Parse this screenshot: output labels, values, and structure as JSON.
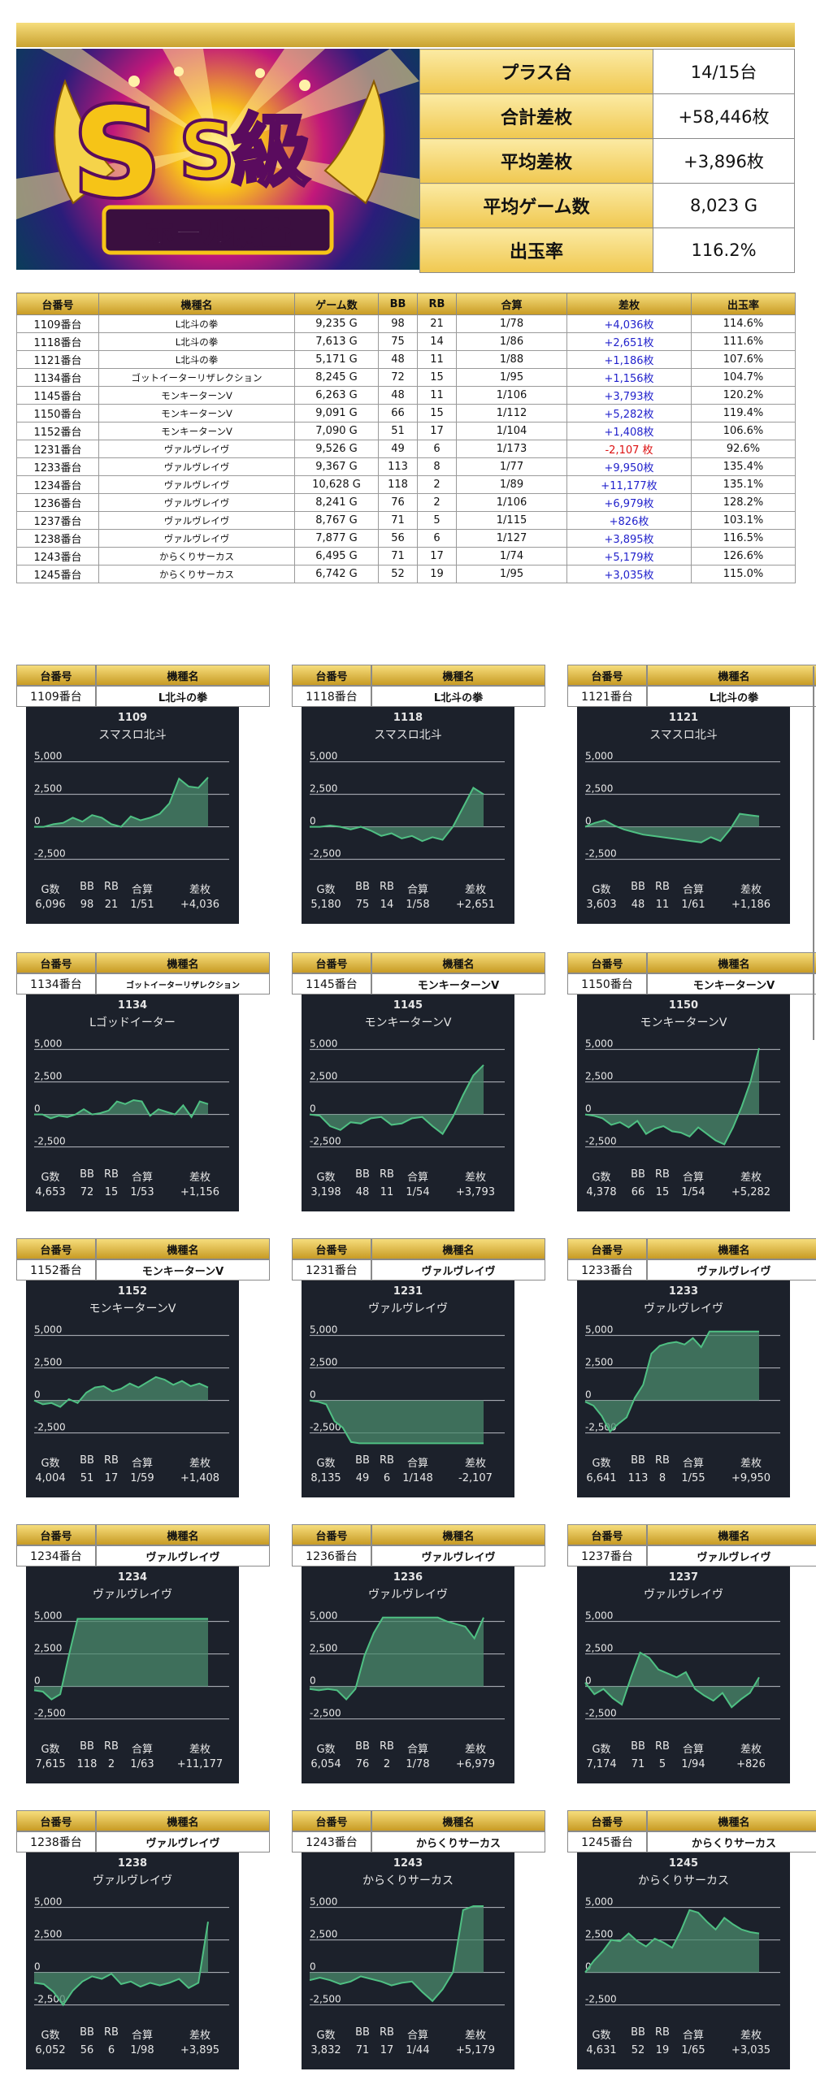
{
  "banner": {
    "logo_text": "S級",
    "sub_text": "ホール調査"
  },
  "summary": [
    {
      "label": "プラス台",
      "value": "14/15台"
    },
    {
      "label": "合計差枚",
      "value": "+58,446枚"
    },
    {
      "label": "平均差枚",
      "value": "+3,896枚"
    },
    {
      "label": "平均ゲーム数",
      "value": "8,023 G"
    },
    {
      "label": "出玉率",
      "value": "116.2%"
    }
  ],
  "table": {
    "headers": [
      "台番号",
      "機種名",
      "ゲーム数",
      "BB",
      "RB",
      "合算",
      "差枚",
      "出玉率"
    ],
    "rows": [
      [
        "1109番台",
        "L北斗の拳",
        "9,235 G",
        "98",
        "21",
        "1/78",
        "+4,036枚",
        "114.6%"
      ],
      [
        "1118番台",
        "L北斗の拳",
        "7,613 G",
        "75",
        "14",
        "1/86",
        "+2,651枚",
        "111.6%"
      ],
      [
        "1121番台",
        "L北斗の拳",
        "5,171 G",
        "48",
        "11",
        "1/88",
        "+1,186枚",
        "107.6%"
      ],
      [
        "1134番台",
        "ゴットイーターリザレクション",
        "8,245 G",
        "72",
        "15",
        "1/95",
        "+1,156枚",
        "104.7%"
      ],
      [
        "1145番台",
        "モンキーターンV",
        "6,263 G",
        "48",
        "11",
        "1/106",
        "+3,793枚",
        "120.2%"
      ],
      [
        "1150番台",
        "モンキーターンV",
        "9,091 G",
        "66",
        "15",
        "1/112",
        "+5,282枚",
        "119.4%"
      ],
      [
        "1152番台",
        "モンキーターンV",
        "7,090 G",
        "51",
        "17",
        "1/104",
        "+1,408枚",
        "106.6%"
      ],
      [
        "1231番台",
        "ヴァルヴレイヴ",
        "9,526 G",
        "49",
        "6",
        "1/173",
        "-2,107 枚",
        "92.6%"
      ],
      [
        "1233番台",
        "ヴァルヴレイヴ",
        "9,367 G",
        "113",
        "8",
        "1/77",
        "+9,950枚",
        "135.4%"
      ],
      [
        "1234番台",
        "ヴァルヴレイヴ",
        "10,628 G",
        "118",
        "2",
        "1/89",
        "+11,177枚",
        "135.1%"
      ],
      [
        "1236番台",
        "ヴァルヴレイヴ",
        "8,241 G",
        "76",
        "2",
        "1/106",
        "+6,979枚",
        "128.2%"
      ],
      [
        "1237番台",
        "ヴァルヴレイヴ",
        "8,767 G",
        "71",
        "5",
        "1/115",
        "+826枚",
        "103.1%"
      ],
      [
        "1238番台",
        "ヴァルヴレイヴ",
        "7,877 G",
        "56",
        "6",
        "1/127",
        "+3,895枚",
        "116.5%"
      ],
      [
        "1243番台",
        "からくりサーカス",
        "6,495 G",
        "71",
        "17",
        "1/74",
        "+5,179枚",
        "126.6%"
      ],
      [
        "1245番台",
        "からくりサーカス",
        "6,742 G",
        "52",
        "19",
        "1/95",
        "+3,035枚",
        "115.0%"
      ]
    ]
  },
  "card_header": {
    "unit": "台番号",
    "machine": "機種名"
  },
  "stat_labels": [
    "G数",
    "BB",
    "RB",
    "合算",
    "差枚"
  ],
  "y_ticks": [
    "5,000",
    "2,500",
    "0",
    "-2,500"
  ],
  "cards": [
    {
      "unit": "1109番台",
      "machine": "L北斗の拳",
      "panel_num": "1109",
      "panel_machine": "スマスロ北斗",
      "stats": [
        "6,096",
        "98",
        "21",
        "1/51",
        "+4,036"
      ],
      "series": [
        0,
        0,
        200,
        300,
        700,
        400,
        900,
        700,
        200,
        0,
        800,
        500,
        700,
        1000,
        1800,
        3700,
        3100,
        3000,
        3800
      ]
    },
    {
      "unit": "1118番台",
      "machine": "L北斗の拳",
      "panel_num": "1118",
      "panel_machine": "スマスロ北斗",
      "stats": [
        "5,180",
        "75",
        "14",
        "1/58",
        "+2,651"
      ],
      "series": [
        0,
        0,
        100,
        0,
        -200,
        0,
        -300,
        -700,
        -500,
        -900,
        -700,
        -1100,
        -800,
        -1000,
        0,
        1500,
        3000,
        2500
      ]
    },
    {
      "unit": "1121番台",
      "machine": "L北斗の拳",
      "panel_num": "1121",
      "panel_machine": "スマスロ北斗",
      "stats": [
        "3,603",
        "48",
        "11",
        "1/61",
        "+1,186"
      ],
      "series": [
        0,
        300,
        500,
        100,
        -200,
        -400,
        -600,
        -700,
        -800,
        -900,
        -1000,
        -1100,
        -1200,
        -800,
        -1100,
        -200,
        1000,
        900,
        800
      ]
    },
    {
      "unit": "1134番台",
      "machine": "ゴットイーターリザレクション",
      "panel_num": "1134",
      "panel_machine": "Lゴッドイーター",
      "stats": [
        "4,653",
        "72",
        "15",
        "1/53",
        "+1,156"
      ],
      "series": [
        0,
        0,
        -300,
        -100,
        -200,
        0,
        400,
        0,
        100,
        300,
        1000,
        800,
        1100,
        1000,
        -100,
        400,
        200,
        0,
        700,
        -200,
        1000,
        800
      ]
    },
    {
      "unit": "1145番台",
      "machine": "モンキーターンV",
      "panel_num": "1145",
      "panel_machine": "モンキーターンV",
      "stats": [
        "3,198",
        "48",
        "11",
        "1/54",
        "+3,793"
      ],
      "series": [
        0,
        -100,
        -900,
        -1200,
        -600,
        -700,
        -300,
        -200,
        -800,
        -700,
        -300,
        -200,
        -900,
        -1500,
        -200,
        1500,
        3000,
        3800
      ]
    },
    {
      "unit": "1150番台",
      "machine": "モンキーターンV",
      "panel_num": "1150",
      "panel_machine": "モンキーターンV",
      "stats": [
        "4,378",
        "66",
        "15",
        "1/54",
        "+5,282"
      ],
      "series": [
        0,
        -100,
        -300,
        -800,
        -600,
        -1000,
        -500,
        -1500,
        -1100,
        -900,
        -1300,
        -1400,
        -1700,
        -1000,
        -1500,
        -2000,
        -2300,
        -1000,
        600,
        2500,
        5100
      ]
    },
    {
      "unit": "1152番台",
      "machine": "モンキーターンV",
      "panel_num": "1152",
      "panel_machine": "モンキーターンV",
      "stats": [
        "4,004",
        "51",
        "17",
        "1/59",
        "+1,408"
      ],
      "series": [
        0,
        -300,
        -200,
        -500,
        100,
        -200,
        600,
        1000,
        1100,
        700,
        900,
        1300,
        1000,
        1400,
        1800,
        1600,
        1200,
        1500,
        1100,
        1300,
        1000
      ]
    },
    {
      "unit": "1231番台",
      "machine": "ヴァルヴレイヴ",
      "panel_num": "1231",
      "panel_machine": "ヴァルヴレイヴ",
      "stats": [
        "8,135",
        "49",
        "6",
        "1/148",
        "-2,107"
      ],
      "series": [
        0,
        -100,
        -300,
        -1600,
        -2100,
        -3200,
        -3300,
        -3300,
        -3300,
        -3300,
        -3300,
        -3300,
        -3300,
        -3300,
        -3300,
        -3300,
        -3300,
        -3300,
        -3300,
        -3300,
        -3300,
        -3300
      ]
    },
    {
      "unit": "1233番台",
      "machine": "ヴァルヴレイヴ",
      "panel_num": "1233",
      "panel_machine": "ヴァルヴレイヴ",
      "stats": [
        "6,641",
        "113",
        "8",
        "1/55",
        "+9,950"
      ],
      "series": [
        -100,
        -400,
        -1200,
        -2400,
        -1800,
        -1300,
        200,
        1200,
        3600,
        4200,
        4400,
        4500,
        4300,
        4800,
        4100,
        5300,
        5300,
        5300,
        5300,
        5300,
        5300,
        5300
      ]
    },
    {
      "unit": "1234番台",
      "machine": "ヴァルヴレイヴ",
      "panel_num": "1234",
      "panel_machine": "ヴァルヴレイヴ",
      "stats": [
        "7,615",
        "118",
        "2",
        "1/63",
        "+11,177"
      ],
      "series": [
        -300,
        -400,
        -1000,
        -600,
        2400,
        5200,
        5200,
        5200,
        5200,
        5200,
        5200,
        5200,
        5200,
        5200,
        5200,
        5200,
        5200,
        5200,
        5200,
        5200,
        5200
      ]
    },
    {
      "unit": "1236番台",
      "machine": "ヴァルヴレイヴ",
      "panel_num": "1236",
      "panel_machine": "ヴァルヴレイヴ",
      "stats": [
        "6,054",
        "76",
        "2",
        "1/78",
        "+6,979"
      ],
      "series": [
        -200,
        -300,
        -200,
        -300,
        -1000,
        -200,
        2400,
        4100,
        5300,
        5300,
        5300,
        5300,
        5300,
        5300,
        5300,
        5000,
        4800,
        4600,
        3700,
        5300
      ]
    },
    {
      "unit": "1237番台",
      "machine": "ヴァルヴレイヴ",
      "panel_num": "1237",
      "panel_machine": "ヴァルヴレイヴ",
      "stats": [
        "7,174",
        "71",
        "5",
        "1/94",
        "+826"
      ],
      "series": [
        300,
        -600,
        -200,
        -900,
        -1400,
        700,
        2600,
        2200,
        1300,
        1000,
        700,
        1100,
        -200,
        -700,
        -1100,
        -500,
        -1600,
        -1000,
        -500,
        700
      ]
    },
    {
      "unit": "1238番台",
      "machine": "ヴァルヴレイヴ",
      "panel_num": "1238",
      "panel_machine": "ヴァルヴレイヴ",
      "stats": [
        "6,052",
        "56",
        "6",
        "1/98",
        "+3,895"
      ],
      "series": [
        -800,
        -900,
        -1500,
        -2500,
        -1400,
        -700,
        -300,
        -500,
        -100,
        -900,
        -700,
        -1100,
        -800,
        -1000,
        -800,
        -500,
        -1200,
        -800,
        3900
      ]
    },
    {
      "unit": "1243番台",
      "machine": "からくりサーカス",
      "panel_num": "1243",
      "panel_machine": "からくりサーカス",
      "stats": [
        "3,832",
        "71",
        "17",
        "1/44",
        "+5,179"
      ],
      "series": [
        -600,
        -400,
        -600,
        -900,
        -700,
        -300,
        -500,
        -700,
        -1000,
        -800,
        -700,
        -1500,
        -2200,
        -1300,
        0,
        4800,
        5100,
        5100
      ]
    },
    {
      "unit": "1245番台",
      "machine": "からくりサーカス",
      "panel_num": "1245",
      "panel_machine": "からくりサーカス",
      "stats": [
        "4,631",
        "52",
        "19",
        "1/65",
        "+3,035"
      ],
      "series": [
        0,
        900,
        1600,
        2500,
        2400,
        3000,
        2400,
        2000,
        2600,
        2300,
        1900,
        3200,
        4800,
        4600,
        3900,
        3300,
        4200,
        3700,
        3300,
        3100,
        3000
      ]
    }
  ],
  "colors": {
    "gold": "#e3c04a",
    "panel_bg": "#1c212b",
    "line": "#4fc083",
    "fill": "#4a8a6c",
    "positive": "#2222cc",
    "negative": "#dd1111"
  }
}
